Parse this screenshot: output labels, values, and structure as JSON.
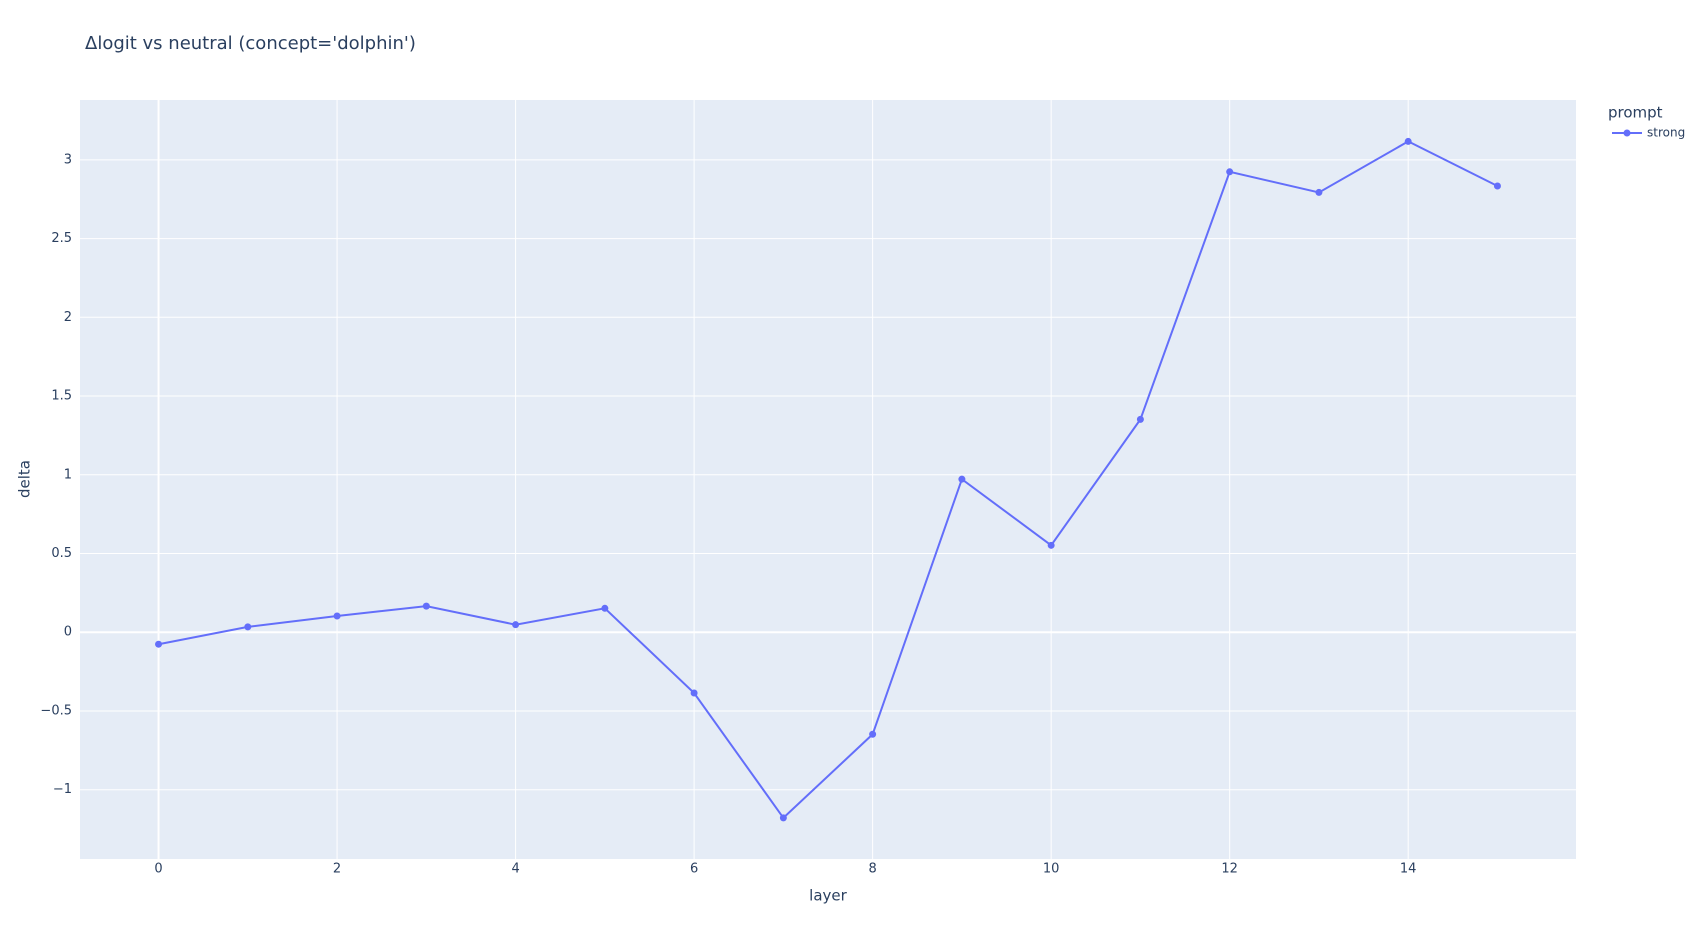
{
  "chart_data": {
    "type": "line",
    "title": "Δlogit vs neutral (concept='dolphin')",
    "x_label": "layer",
    "y_label": "delta",
    "legend_title": "prompt",
    "legend_position": "top-right",
    "x": [
      0,
      1,
      2,
      3,
      4,
      5,
      6,
      7,
      8,
      9,
      10,
      11,
      12,
      13,
      14,
      15
    ],
    "series": [
      {
        "name": "strong",
        "color": "#636efa",
        "values": [
          -0.076,
          0.034,
          0.103,
          0.166,
          0.048,
          0.152,
          -0.386,
          -1.179,
          -0.648,
          0.972,
          0.552,
          1.352,
          2.924,
          2.793,
          3.117,
          2.834
        ]
      }
    ],
    "xlim": [
      -0.88,
      15.88
    ],
    "xticks": [
      0,
      2,
      4,
      6,
      8,
      10,
      12,
      14
    ],
    "ylim": [
      -1.44,
      3.38
    ],
    "yticks": [
      {
        "value": -1,
        "label": "−1"
      },
      {
        "value": -0.5,
        "label": "−0.5"
      },
      0,
      0.5,
      1,
      1.5,
      2,
      2.5,
      3
    ],
    "grid": true
  }
}
